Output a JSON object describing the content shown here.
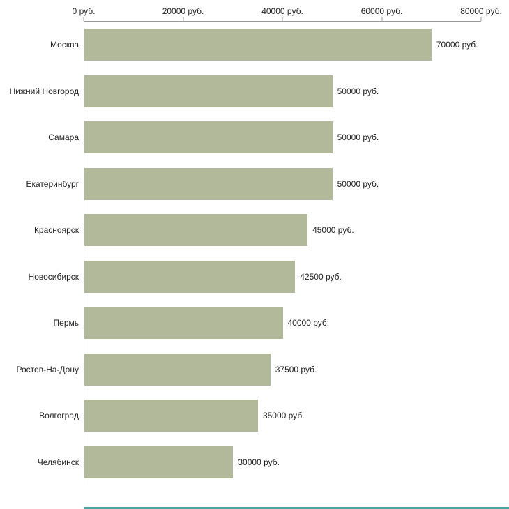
{
  "chart_data": {
    "type": "bar",
    "orientation": "horizontal",
    "title": "",
    "xlabel": "",
    "ylabel": "",
    "categories": [
      "Москва",
      "Нижний Новгород",
      "Самара",
      "Екатеринбург",
      "Красноярск",
      "Новосибирск",
      "Пермь",
      "Ростов-На-Дону",
      "Волгоград",
      "Челябинск"
    ],
    "values": [
      70000,
      50000,
      50000,
      50000,
      45000,
      42500,
      40000,
      37500,
      35000,
      30000
    ],
    "value_labels": [
      "70000 руб.",
      "50000 руб.",
      "50000 руб.",
      "50000 руб.",
      "45000 руб.",
      "42500 руб.",
      "40000 руб.",
      "37500 руб.",
      "35000 руб.",
      "30000 руб."
    ],
    "xlim": [
      0,
      80000
    ],
    "x_ticks": [
      0,
      20000,
      40000,
      60000,
      80000
    ],
    "x_tick_labels": [
      "0 руб.",
      "20000 руб.",
      "40000 руб.",
      "60000 руб.",
      "80000 руб."
    ],
    "bar_color": "#b2b89a",
    "axis_color": "#9a9a9a",
    "accent_line_color": "#4aa5a0",
    "grid": false,
    "legend": false
  }
}
